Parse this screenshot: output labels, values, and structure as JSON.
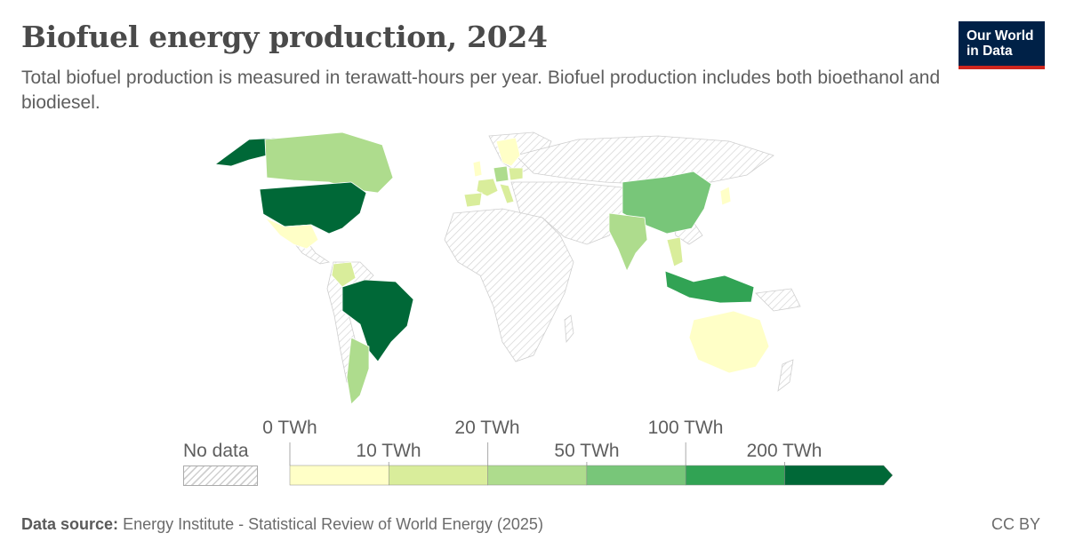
{
  "header": {
    "title": "Biofuel energy production, 2024",
    "subtitle": "Total biofuel production is measured in terawatt-hours per year. Biofuel production includes both bioethanol and biodiesel."
  },
  "logo": {
    "line1": "Our World",
    "line2": "in Data",
    "bg": "#002147",
    "accent": "#ce261e"
  },
  "legend": {
    "no_data_label": "No data",
    "top_labels": [
      "0 TWh",
      "20 TWh",
      "100 TWh"
    ],
    "bottom_labels": [
      "10 TWh",
      "50 TWh",
      "200 TWh"
    ],
    "bins": [
      {
        "from": 0,
        "to": 10,
        "color": "#ffffc7"
      },
      {
        "from": 10,
        "to": 20,
        "color": "#d9ed9b"
      },
      {
        "from": 20,
        "to": 50,
        "color": "#aedc8d"
      },
      {
        "from": 50,
        "to": 100,
        "color": "#78c679"
      },
      {
        "from": 100,
        "to": 200,
        "color": "#31a354"
      },
      {
        "from": 200,
        "to": null,
        "color": "#006837"
      }
    ]
  },
  "map": {
    "no_data_pattern": "hatched-grey",
    "countries": [
      {
        "name": "United States",
        "bin": 5
      },
      {
        "name": "Alaska",
        "bin": 5
      },
      {
        "name": "Brazil",
        "bin": 5
      },
      {
        "name": "Indonesia",
        "bin": 4
      },
      {
        "name": "China",
        "bin": 3
      },
      {
        "name": "Canada",
        "bin": 2
      },
      {
        "name": "India",
        "bin": 2
      },
      {
        "name": "Argentina",
        "bin": 2
      },
      {
        "name": "Colombia",
        "bin": 1
      },
      {
        "name": "Thailand",
        "bin": 1
      },
      {
        "name": "Germany",
        "bin": 2
      },
      {
        "name": "France",
        "bin": 1
      },
      {
        "name": "Spain",
        "bin": 1
      },
      {
        "name": "Mexico",
        "bin": 0
      },
      {
        "name": "Australia",
        "bin": 0
      },
      {
        "name": "Scandinavia",
        "bin": 0
      },
      {
        "name": "United Kingdom",
        "bin": 0
      },
      {
        "name": "Italy",
        "bin": 1
      },
      {
        "name": "Poland",
        "bin": 1
      },
      {
        "name": "Japan",
        "bin": 0
      }
    ]
  },
  "footer": {
    "source_label": "Data source:",
    "source_text": "Energy Institute - Statistical Review of World Energy (2025)",
    "license": "CC BY"
  }
}
